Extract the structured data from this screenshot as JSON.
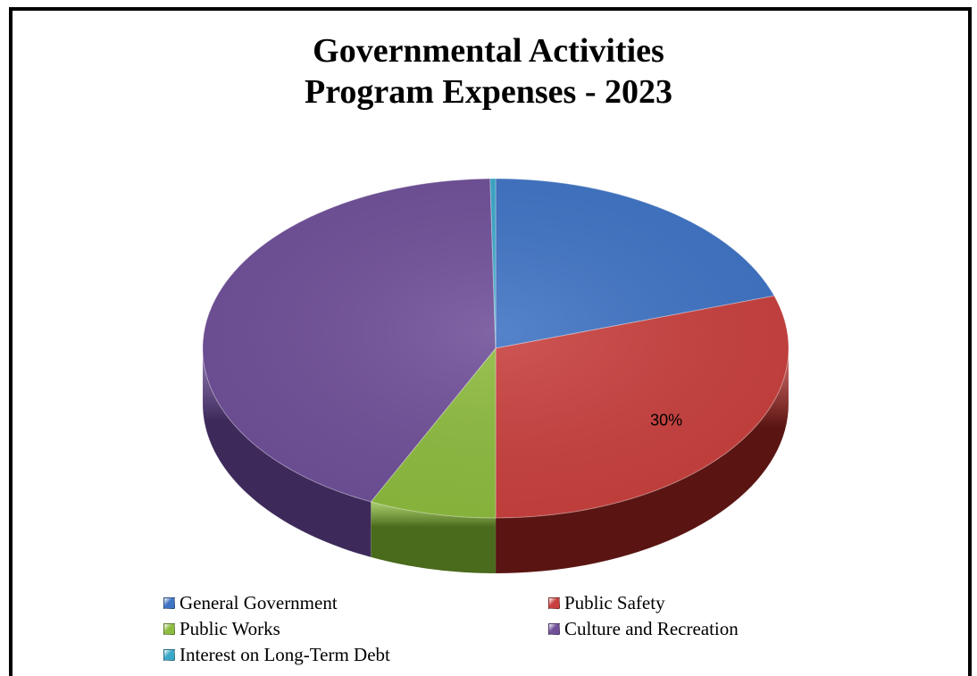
{
  "title_line1": "Governmental Activities",
  "title_line2": "Program Expenses - 2023",
  "chart_data": {
    "type": "pie",
    "variant": "3d",
    "title": "Governmental Activities Program Expenses - 2023",
    "categories": [
      "General Government",
      "Public Safety",
      "Public Works",
      "Culture and Recreation",
      "Interest on Long-Term Debt"
    ],
    "values": [
      20,
      30,
      7,
      42.7,
      0.3
    ],
    "colors": [
      "#3f73c4",
      "#c8403e",
      "#8dbb3e",
      "#6f4f98",
      "#3aa8c9"
    ],
    "side_colors": [
      "#1f3d70",
      "#5a1512",
      "#4a6a1c",
      "#3d2a5a",
      "#1b6b84"
    ],
    "data_labels": [
      {
        "category": "Public Safety",
        "text": "30%"
      }
    ],
    "legend_position": "bottom"
  },
  "legend": {
    "items": [
      {
        "label": "General Government",
        "color": "#3f73c4"
      },
      {
        "label": "Public Safety",
        "color": "#c8403e"
      },
      {
        "label": "Public Works",
        "color": "#8dbb3e"
      },
      {
        "label": "Culture and Recreation",
        "color": "#6f4f98"
      },
      {
        "label": "Interest on Long-Term Debt",
        "color": "#3aa8c9"
      }
    ]
  }
}
